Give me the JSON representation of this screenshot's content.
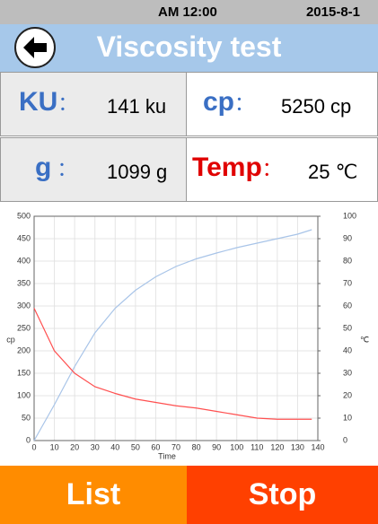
{
  "status_bar": {
    "time": "AM 12:00",
    "date": "2015-8-1"
  },
  "header": {
    "title": "Viscosity test"
  },
  "readings": [
    {
      "label": "KU",
      "separator": "：",
      "value": "141 ku",
      "label_color": "#3a6fc4"
    },
    {
      "label": "cp",
      "separator": "：",
      "value": "5250 cp",
      "label_color": "#3a6fc4"
    },
    {
      "label": "g",
      "separator": " ：",
      "value": "1099 g",
      "label_color": "#3a6fc4"
    },
    {
      "label": "Temp",
      "separator": "：",
      "value": "25 ℃",
      "label_color": "#e00000"
    }
  ],
  "chart": {
    "type": "line",
    "x_label": "Time",
    "y_label": "cp",
    "y2_label": "℃",
    "x": [
      0,
      10,
      20,
      30,
      40,
      50,
      60,
      70,
      80,
      90,
      100,
      110,
      120,
      130,
      137
    ],
    "series": [
      {
        "color": "#a8c4e8",
        "values": [
          0,
          80,
          165,
          240,
          295,
          335,
          365,
          388,
          405,
          418,
          430,
          440,
          450,
          460,
          470
        ]
      },
      {
        "color": "#ff5050",
        "axis": "y2",
        "values": [
          59,
          40,
          30,
          24,
          21,
          18.5,
          17,
          15.5,
          14.5,
          13,
          11.5,
          10,
          9.5,
          9.5,
          9.5
        ]
      }
    ],
    "xlim": [
      0,
      140
    ],
    "xticks": [
      0,
      10,
      20,
      30,
      40,
      50,
      60,
      70,
      80,
      90,
      100,
      110,
      120,
      130,
      140
    ],
    "ylim": [
      0,
      500
    ],
    "yticks": [
      0,
      50,
      100,
      150,
      200,
      250,
      300,
      350,
      400,
      450,
      500
    ],
    "y2lim": [
      0,
      100
    ],
    "y2ticks": [
      0,
      10,
      20,
      30,
      40,
      50,
      60,
      70,
      80,
      90,
      100
    ],
    "grid": true
  },
  "buttons": [
    {
      "label": "List",
      "color": "#ff8c00"
    },
    {
      "label": "Stop",
      "color": "#ff4000"
    }
  ]
}
